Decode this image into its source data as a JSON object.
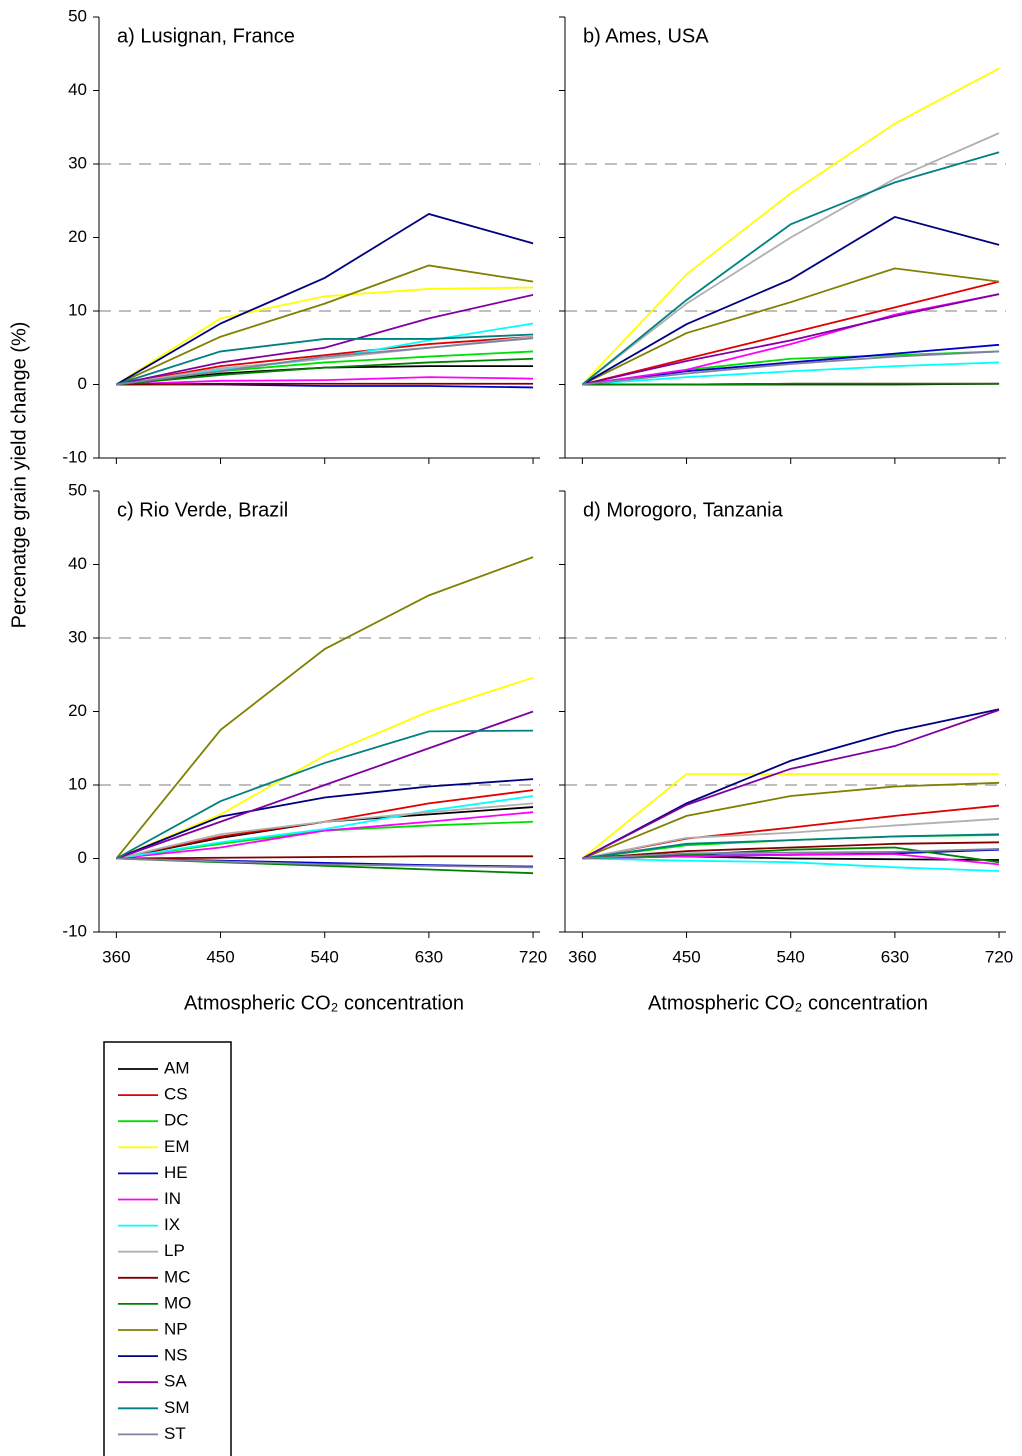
{
  "chart_data": {
    "type": "line",
    "ylabel": "Percenatge grain yield change (%)",
    "xlabel": "Atmospheric CO₂ concentration",
    "x": [
      360,
      450,
      540,
      630,
      720
    ],
    "xlim": [
      345,
      726
    ],
    "xticks": [
      360,
      450,
      540,
      630,
      720
    ],
    "ylim": [
      -10,
      50
    ],
    "yticks": [
      -10,
      0,
      10,
      20,
      30,
      40,
      50
    ],
    "hlines": [
      10,
      30
    ],
    "series": [
      {
        "name": "AM",
        "color": "#000000"
      },
      {
        "name": "CS",
        "color": "#e00000"
      },
      {
        "name": "DC",
        "color": "#00e000"
      },
      {
        "name": "EM",
        "color": "#ffff00"
      },
      {
        "name": "HE",
        "color": "#0000cc"
      },
      {
        "name": "IN",
        "color": "#ff00ff"
      },
      {
        "name": "IX",
        "color": "#00ffff"
      },
      {
        "name": "LP",
        "color": "#b0b0b0"
      },
      {
        "name": "MC",
        "color": "#800000"
      },
      {
        "name": "MO",
        "color": "#008000"
      },
      {
        "name": "NP",
        "color": "#808000"
      },
      {
        "name": "NS",
        "color": "#000080"
      },
      {
        "name": "SA",
        "color": "#8000a0"
      },
      {
        "name": "SM",
        "color": "#008080"
      },
      {
        "name": "ST",
        "color": "#8080a0"
      }
    ],
    "panels": [
      {
        "title": "a) Lusignan, France",
        "values": [
          [
            0,
            1.5,
            2.3,
            2.5,
            2.5
          ],
          [
            0,
            2.5,
            4,
            5.5,
            6.5
          ],
          [
            0,
            1.8,
            3,
            3.8,
            4.5
          ],
          [
            0,
            9,
            12,
            13,
            13.2
          ],
          [
            0,
            0,
            -0.2,
            -0.2,
            -0.4
          ],
          [
            0,
            0.5,
            0.6,
            1,
            0.8
          ],
          [
            0,
            2,
            3.5,
            6,
            8.3
          ],
          [
            0,
            2.2,
            3.5,
            5,
            6.5
          ],
          [
            0,
            0.1,
            0.1,
            0.1,
            0.1
          ],
          [
            0,
            1.3,
            2.3,
            3,
            3.5
          ],
          [
            0,
            6.5,
            11,
            16.2,
            14
          ],
          [
            0,
            8.3,
            14.5,
            23.2,
            19.2
          ],
          [
            0,
            3,
            5,
            9,
            12.2
          ],
          [
            0,
            4.5,
            6.2,
            6.2,
            6.8
          ],
          [
            0,
            1.8,
            3.8,
            5,
            6.3
          ]
        ]
      },
      {
        "title": "b) Ames, USA",
        "values": [
          [
            0,
            0,
            0,
            0,
            0.1
          ],
          [
            0,
            3.5,
            7,
            10.5,
            14
          ],
          [
            0,
            2,
            3.5,
            4,
            4.5
          ],
          [
            0,
            15,
            26,
            35.5,
            43
          ],
          [
            0,
            1.8,
            3,
            4.2,
            5.4
          ],
          [
            0,
            2,
            5.5,
            9.5,
            12.3
          ],
          [
            0,
            1,
            1.8,
            2.5,
            3
          ],
          [
            0,
            11,
            20,
            28,
            34.2
          ],
          [
            0,
            0,
            0.1,
            0.1,
            0.1
          ],
          [
            0,
            0,
            0.1,
            0.1,
            0.1
          ],
          [
            0,
            7,
            11.2,
            15.8,
            14
          ],
          [
            0,
            8.2,
            14.3,
            22.8,
            19
          ],
          [
            0,
            3.2,
            6,
            9.3,
            12.3
          ],
          [
            0,
            11.5,
            21.8,
            27.5,
            31.6
          ],
          [
            0,
            1.5,
            2.8,
            3.8,
            4.5
          ]
        ]
      },
      {
        "title": "c) Rio Verde, Brazil",
        "values": [
          [
            0,
            2.8,
            5,
            6,
            7
          ],
          [
            0,
            3,
            5,
            7.5,
            9.3
          ],
          [
            0,
            2,
            3.8,
            4.5,
            5
          ],
          [
            0,
            6,
            14,
            20,
            24.6
          ],
          [
            0,
            -0.3,
            -0.6,
            -0.9,
            -1.1
          ],
          [
            0,
            1.5,
            3.8,
            5,
            6.3
          ],
          [
            0,
            2.2,
            4,
            6.5,
            8.5
          ],
          [
            0,
            3.3,
            5,
            6.3,
            7.5
          ],
          [
            0,
            0.1,
            0.2,
            0.3,
            0.3
          ],
          [
            0,
            -0.5,
            -1,
            -1.5,
            -2
          ],
          [
            0,
            17.5,
            28.5,
            35.8,
            41
          ],
          [
            0,
            5.7,
            8.3,
            9.8,
            10.8
          ],
          [
            0,
            5,
            10,
            15,
            20
          ],
          [
            0,
            7.8,
            13,
            17.3,
            17.4
          ],
          [
            0,
            -0.4,
            -0.8,
            -1,
            -1.2
          ]
        ]
      },
      {
        "title": "d) Morogoro, Tanzania",
        "values": [
          [
            0,
            0.3,
            0,
            -0.1,
            -0.2
          ],
          [
            0,
            2.7,
            4.2,
            5.8,
            7.2
          ],
          [
            0,
            1.8,
            2.5,
            3,
            3.2
          ],
          [
            0,
            11.5,
            11.5,
            11.5,
            11.5
          ],
          [
            0,
            0.4,
            0.5,
            0.7,
            1.2
          ],
          [
            0,
            0.3,
            0.5,
            0.6,
            -0.8
          ],
          [
            0,
            -0.3,
            -0.5,
            -1.2,
            -1.7
          ],
          [
            0,
            2.8,
            3.5,
            4.5,
            5.4
          ],
          [
            0,
            1,
            1.5,
            2,
            2.2
          ],
          [
            0,
            0.5,
            1.2,
            1.5,
            -0.5
          ],
          [
            0,
            5.8,
            8.5,
            9.8,
            10.3
          ],
          [
            0,
            7.5,
            13.3,
            17.3,
            20.3
          ],
          [
            0,
            7.3,
            12.2,
            15.3,
            20.2
          ],
          [
            0,
            2,
            2.5,
            3,
            3.3
          ],
          [
            0,
            0.7,
            0.8,
            0.9,
            1.3
          ]
        ]
      }
    ]
  }
}
